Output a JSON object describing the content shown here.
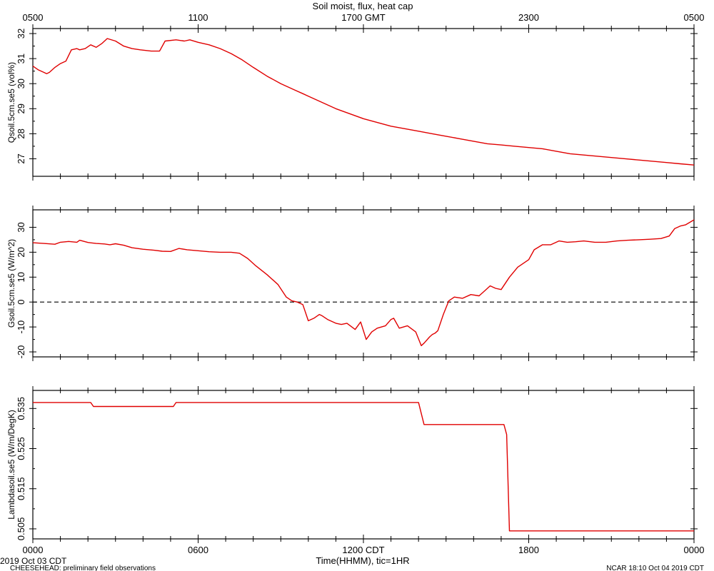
{
  "title": "Soil moist, flux, heat cap",
  "top_axis": {
    "ticks": [
      "0500",
      "1100",
      "1700 GMT",
      "2300",
      "0500"
    ]
  },
  "bottom_axis": {
    "ticks": [
      "0000",
      "0600",
      "1200 CDT",
      "1800",
      "0000"
    ],
    "label": "Time(HHMM), tic=1HR"
  },
  "footer": {
    "date": "2019 Oct 03 CDT",
    "project": "CHEESEHEAD: preliminary field observations",
    "stamp": "NCAR 18:10 Oct 04 2019 CDT"
  },
  "colors": {
    "line": "#e00000",
    "axis": "#000000",
    "zero_line": "#000000"
  },
  "chart_data": [
    {
      "type": "line",
      "ylabel": "Qsoil.5cm.se5 (vol%)",
      "xlim": [
        0,
        24
      ],
      "ylim": [
        26.3,
        32.2
      ],
      "yticks": [
        27,
        28,
        29,
        30,
        31,
        32
      ],
      "x": [
        0,
        0.2,
        0.4,
        0.5,
        0.6,
        0.8,
        1.0,
        1.2,
        1.4,
        1.6,
        1.7,
        1.9,
        2.1,
        2.3,
        2.5,
        2.7,
        3.0,
        3.3,
        3.6,
        3.9,
        4.3,
        4.6,
        4.8,
        5.2,
        5.5,
        5.7,
        6.0,
        6.4,
        6.8,
        7.2,
        7.6,
        8.0,
        8.5,
        9.0,
        9.5,
        9.8,
        10.0,
        10.5,
        11.0,
        11.5,
        12.0,
        12.5,
        13.0,
        13.5,
        14.0,
        14.5,
        15.0,
        15.5,
        16.0,
        16.5,
        17.0,
        17.5,
        18.0,
        18.5,
        19.0,
        19.5,
        20.0,
        20.5,
        21.0,
        21.5,
        22.0,
        22.5,
        23.0,
        23.5,
        24.0
      ],
      "y": [
        30.7,
        30.55,
        30.45,
        30.4,
        30.45,
        30.65,
        30.8,
        30.9,
        31.35,
        31.4,
        31.35,
        31.4,
        31.55,
        31.45,
        31.6,
        31.8,
        31.7,
        31.5,
        31.4,
        31.35,
        31.3,
        31.3,
        31.7,
        31.75,
        31.7,
        31.75,
        31.65,
        31.55,
        31.4,
        31.2,
        30.95,
        30.65,
        30.3,
        30.0,
        29.75,
        29.6,
        29.5,
        29.25,
        29.0,
        28.8,
        28.6,
        28.45,
        28.3,
        28.2,
        28.1,
        28.0,
        27.9,
        27.8,
        27.7,
        27.6,
        27.55,
        27.5,
        27.45,
        27.4,
        27.3,
        27.2,
        27.15,
        27.1,
        27.05,
        27.0,
        26.95,
        26.9,
        26.85,
        26.8,
        26.75
      ]
    },
    {
      "type": "line",
      "ylabel": "Gsoil.5cm.se5 (W/m^2)",
      "xlim": [
        0,
        24
      ],
      "ylim": [
        -22,
        37
      ],
      "yticks": [
        -20,
        -10,
        0,
        10,
        20,
        30
      ],
      "zero_line": true,
      "x": [
        0,
        0.4,
        0.8,
        1.0,
        1.3,
        1.6,
        1.7,
        2.0,
        2.3,
        2.6,
        2.8,
        3.0,
        3.3,
        3.6,
        4.0,
        4.4,
        4.7,
        5.0,
        5.3,
        5.6,
        6.0,
        6.4,
        6.8,
        7.2,
        7.5,
        7.8,
        8.1,
        8.5,
        8.9,
        9.2,
        9.4,
        9.6,
        9.8,
        10.0,
        10.2,
        10.4,
        10.5,
        10.7,
        11.0,
        11.2,
        11.4,
        11.7,
        11.9,
        12.1,
        12.3,
        12.5,
        12.8,
        13.0,
        13.1,
        13.3,
        13.6,
        13.9,
        14.1,
        14.2,
        14.4,
        14.5,
        14.6,
        14.7,
        14.9,
        15.1,
        15.3,
        15.6,
        15.9,
        16.2,
        16.4,
        16.6,
        16.8,
        17.0,
        17.3,
        17.6,
        17.8,
        18.0,
        18.2,
        18.5,
        18.8,
        19.1,
        19.4,
        19.7,
        20.0,
        20.4,
        20.8,
        21.2,
        21.6,
        22.0,
        22.4,
        22.8,
        23.1,
        23.3,
        23.5,
        23.7,
        24.0
      ],
      "y": [
        23.8,
        23.5,
        23.2,
        24.0,
        24.3,
        24.0,
        24.8,
        23.9,
        23.5,
        23.3,
        23.0,
        23.4,
        22.8,
        21.8,
        21.2,
        20.8,
        20.4,
        20.3,
        21.5,
        21.0,
        20.6,
        20.2,
        20.0,
        20.0,
        19.6,
        17.5,
        14.5,
        11.0,
        7.0,
        2.0,
        0.5,
        0.0,
        -1.0,
        -7.5,
        -6.5,
        -5.0,
        -5.5,
        -7.0,
        -8.5,
        -9.0,
        -8.5,
        -11.0,
        -8.0,
        -15.0,
        -12.0,
        -10.5,
        -9.5,
        -7.0,
        -6.5,
        -10.5,
        -9.5,
        -12.0,
        -17.5,
        -16.5,
        -14.0,
        -13.0,
        -12.5,
        -11.5,
        -5.0,
        0.5,
        2.0,
        1.5,
        3.0,
        2.5,
        4.5,
        6.5,
        5.5,
        5.0,
        10.0,
        14.0,
        15.5,
        17.0,
        21.0,
        23.0,
        23.0,
        24.5,
        24.0,
        24.2,
        24.5,
        24.0,
        24.0,
        24.5,
        24.8,
        25.0,
        25.2,
        25.5,
        26.5,
        29.5,
        30.5,
        31.0,
        33.0
      ]
    },
    {
      "type": "line",
      "ylabel": "Lambdasoil.se5 (W/m/DegK)",
      "xlim": [
        0,
        24
      ],
      "ylim": [
        0.5025,
        0.5395
      ],
      "yticks": [
        0.505,
        0.515,
        0.525,
        0.535
      ],
      "ytick_labels": [
        "0.505",
        "0.515",
        "0.525",
        "0.535"
      ],
      "x": [
        0,
        2.1,
        2.2,
        5.1,
        5.2,
        14.0,
        14.2,
        17.1,
        17.2,
        17.3,
        24.0
      ],
      "y": [
        0.5365,
        0.5365,
        0.5355,
        0.5355,
        0.5365,
        0.5365,
        0.531,
        0.531,
        0.5285,
        0.5045,
        0.5045
      ]
    }
  ]
}
